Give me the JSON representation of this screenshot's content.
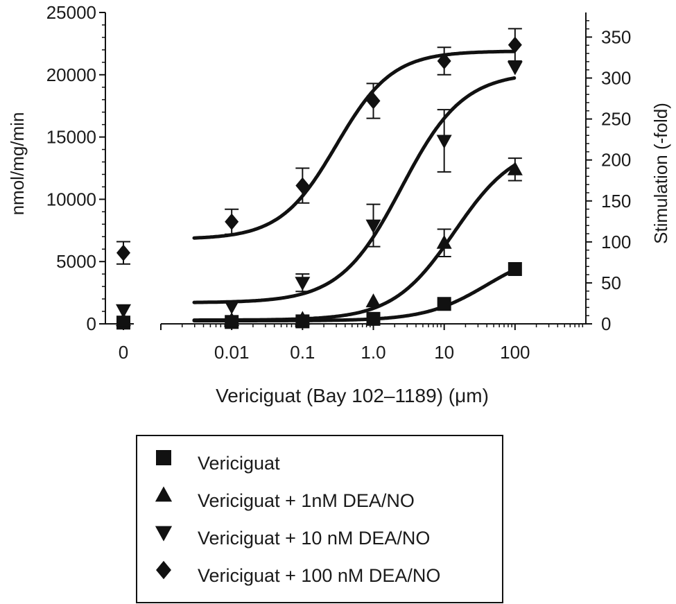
{
  "chart_data": {
    "type": "scatter",
    "xlabel": "Vericiguat (Bay 102–1189) (μm)",
    "ylabel": "nmol/mg/min",
    "y2label": "Stimulation (-fold)",
    "x_scale": "log10 with separate zero-dose point",
    "x_zero_tick": "0",
    "x_ticks": [
      {
        "value": 0.01,
        "label": "0.01"
      },
      {
        "value": 0.1,
        "label": "0.1"
      },
      {
        "value": 1,
        "label": "1.0"
      },
      {
        "value": 10,
        "label": "10"
      },
      {
        "value": 100,
        "label": "100"
      }
    ],
    "xlim": [
      0.001,
      1000
    ],
    "ylim": [
      0,
      25000
    ],
    "y_ticks": [
      {
        "value": 0,
        "label": "0"
      },
      {
        "value": 5000,
        "label": "5000"
      },
      {
        "value": 10000,
        "label": "10000"
      },
      {
        "value": 15000,
        "label": "15000"
      },
      {
        "value": 20000,
        "label": "20000"
      },
      {
        "value": 25000,
        "label": "25000"
      }
    ],
    "y2lim": [
      0,
      380
    ],
    "y2_ticks": [
      {
        "value": 0,
        "label": "0"
      },
      {
        "value": 50,
        "label": "50"
      },
      {
        "value": 100,
        "label": "100"
      },
      {
        "value": 150,
        "label": "150"
      },
      {
        "value": 200,
        "label": "200"
      },
      {
        "value": 250,
        "label": "250"
      },
      {
        "value": 300,
        "label": "300"
      },
      {
        "value": 350,
        "label": "350"
      }
    ],
    "legend_position": "below",
    "series": [
      {
        "name": "Vericiguat",
        "marker": "square",
        "zero_dose": {
          "y": 100,
          "err": 0
        },
        "points": [
          {
            "x": 0.01,
            "y": 150,
            "err": 0
          },
          {
            "x": 0.1,
            "y": 200,
            "err": 0
          },
          {
            "x": 1,
            "y": 400,
            "err": 0
          },
          {
            "x": 10,
            "y": 1600,
            "err": 0
          },
          {
            "x": 100,
            "y": 4400,
            "err": 0
          }
        ],
        "curve": {
          "bottom": 250,
          "top": 6000,
          "ec50": 40,
          "hill": 1
        }
      },
      {
        "name": "Vericiguat + 1nM DEA/NO",
        "marker": "triangle-up",
        "zero_dose": {
          "y": 300,
          "err": 0
        },
        "points": [
          {
            "x": 0.01,
            "y": 300,
            "err": 0
          },
          {
            "x": 0.1,
            "y": 400,
            "err": 0
          },
          {
            "x": 1,
            "y": 1800,
            "err": 0
          },
          {
            "x": 10,
            "y": 6500,
            "err": 1100
          },
          {
            "x": 100,
            "y": 12400,
            "err": 900
          }
        ],
        "curve": {
          "bottom": 300,
          "top": 14500,
          "ec50": 14,
          "hill": 1
        }
      },
      {
        "name": "Vericiguat + 10 nM DEA/NO",
        "marker": "triangle-down",
        "zero_dose": {
          "y": 1100,
          "err": 0
        },
        "points": [
          {
            "x": 0.01,
            "y": 1400,
            "err": 0
          },
          {
            "x": 0.1,
            "y": 3300,
            "err": 700
          },
          {
            "x": 1,
            "y": 7900,
            "err": 1700
          },
          {
            "x": 10,
            "y": 14700,
            "err": 2500
          },
          {
            "x": 100,
            "y": 20600,
            "err": 0
          }
        ],
        "curve": {
          "bottom": 1700,
          "top": 20200,
          "ec50": 2.5,
          "hill": 1
        }
      },
      {
        "name": "Vericiguat + 100 nM DEA/NO",
        "marker": "diamond",
        "zero_dose": {
          "y": 5700,
          "err": 900
        },
        "points": [
          {
            "x": 0.01,
            "y": 8200,
            "err": 1000
          },
          {
            "x": 0.1,
            "y": 11100,
            "err": 1400
          },
          {
            "x": 1,
            "y": 17900,
            "err": 1400
          },
          {
            "x": 10,
            "y": 21100,
            "err": 1100
          },
          {
            "x": 100,
            "y": 22400,
            "err": 1300
          }
        ],
        "curve": {
          "bottom": 6800,
          "top": 21900,
          "ec50": 0.3,
          "hill": 1.1
        }
      }
    ]
  }
}
